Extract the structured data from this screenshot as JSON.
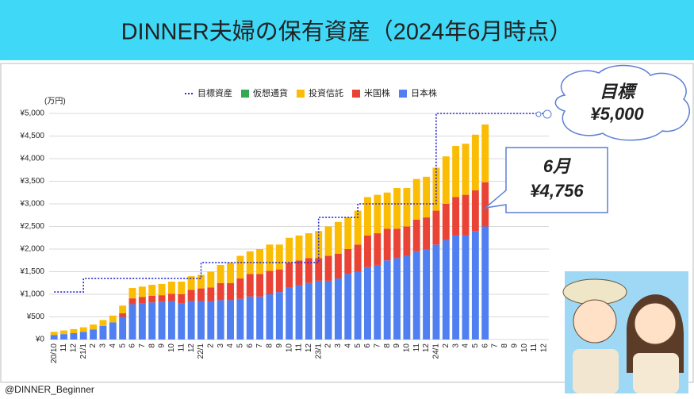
{
  "chart_data": {
    "type": "bar",
    "stacked": true,
    "title": "DINNER夫婦の保有資産（2024年6月時点）",
    "y_unit_label": "(万円)",
    "credit": "@DINNER_Beginner",
    "categories": [
      "20/10",
      "11",
      "12",
      "21/1",
      "2",
      "3",
      "4",
      "5",
      "6",
      "7",
      "8",
      "9",
      "10",
      "11",
      "12",
      "22/1",
      "2",
      "3",
      "4",
      "5",
      "6",
      "7",
      "8",
      "9",
      "10",
      "11",
      "12",
      "23/1",
      "2",
      "3",
      "4",
      "5",
      "6",
      "7",
      "8",
      "9",
      "10",
      "11",
      "12",
      "24/1",
      "2",
      "3",
      "4",
      "5",
      "6",
      "7",
      "8",
      "9",
      "10",
      "11",
      "12"
    ],
    "series": [
      {
        "name": "日本株",
        "color": "#4f7ff0",
        "values": [
          100,
          120,
          140,
          170,
          220,
          300,
          380,
          500,
          780,
          800,
          820,
          830,
          850,
          800,
          850,
          850,
          850,
          870,
          870,
          900,
          950,
          950,
          1000,
          1050,
          1150,
          1200,
          1250,
          1300,
          1300,
          1350,
          1450,
          1500,
          1600,
          1650,
          1750,
          1800,
          1850,
          1950,
          2000,
          2100,
          2200,
          2300,
          2300,
          2400,
          2500,
          null,
          null,
          null,
          null,
          null,
          null
        ]
      },
      {
        "name": "米国株",
        "color": "#ea4335",
        "values": [
          0,
          0,
          0,
          0,
          0,
          0,
          0,
          80,
          130,
          140,
          150,
          150,
          160,
          200,
          250,
          280,
          300,
          380,
          380,
          450,
          500,
          500,
          520,
          500,
          550,
          550,
          550,
          500,
          550,
          550,
          550,
          600,
          700,
          700,
          700,
          650,
          650,
          700,
          700,
          750,
          800,
          850,
          900,
          900,
          980,
          null,
          null,
          null,
          null,
          null,
          null
        ]
      },
      {
        "name": "投資信託",
        "color": "#fbbc04",
        "values": [
          70,
          80,
          90,
          100,
          110,
          130,
          150,
          170,
          230,
          230,
          240,
          250,
          270,
          280,
          300,
          300,
          350,
          400,
          450,
          500,
          500,
          550,
          580,
          550,
          550,
          550,
          550,
          600,
          650,
          700,
          700,
          750,
          850,
          850,
          800,
          900,
          850,
          900,
          900,
          950,
          1050,
          1130,
          1130,
          1230,
          1276,
          null,
          null,
          null,
          null,
          null,
          null
        ]
      },
      {
        "name": "仮想通貨",
        "color": "#34a853",
        "values": [
          0,
          0,
          0,
          0,
          0,
          0,
          0,
          0,
          0,
          0,
          0,
          0,
          0,
          0,
          0,
          0,
          0,
          0,
          0,
          0,
          0,
          0,
          0,
          0,
          0,
          0,
          0,
          0,
          0,
          0,
          0,
          0,
          0,
          0,
          0,
          0,
          0,
          0,
          0,
          0,
          0,
          0,
          0,
          0,
          0,
          null,
          null,
          null,
          null,
          null,
          null
        ]
      }
    ],
    "target": {
      "name": "目標資産",
      "color": "#2b2bd0",
      "style": "dotted",
      "values": [
        1050,
        1050,
        1050,
        1350,
        1350,
        1350,
        1350,
        1350,
        1350,
        1350,
        1350,
        1350,
        1350,
        1350,
        1350,
        1700,
        1700,
        1700,
        1700,
        1700,
        1700,
        1700,
        1700,
        1700,
        1700,
        1700,
        1700,
        2700,
        2700,
        2700,
        2700,
        3000,
        3000,
        3000,
        3000,
        3000,
        3000,
        3000,
        3000,
        5000,
        5000,
        5000,
        5000,
        5000,
        5000,
        5000,
        5000,
        5000,
        5000,
        5000,
        5000
      ]
    },
    "ylim": [
      0,
      5000
    ],
    "yticks": [
      {
        "value": 0,
        "label": "¥0"
      },
      {
        "value": 500,
        "label": "¥500"
      },
      {
        "value": 1000,
        "label": "¥1,000"
      },
      {
        "value": 1500,
        "label": "¥1,500"
      },
      {
        "value": 2000,
        "label": "¥2,000"
      },
      {
        "value": 2500,
        "label": "¥2,500"
      },
      {
        "value": 3000,
        "label": "¥3,000"
      },
      {
        "value": 3500,
        "label": "¥3,500"
      },
      {
        "value": 4000,
        "label": "¥4,000"
      },
      {
        "value": 4500,
        "label": "¥4,500"
      },
      {
        "value": 5000,
        "label": "¥5,000"
      }
    ],
    "grid": true,
    "legend": "top",
    "annotations": [
      {
        "title": "目標",
        "text": "¥5,000"
      },
      {
        "title": "6月",
        "text": "¥4,756"
      }
    ]
  }
}
